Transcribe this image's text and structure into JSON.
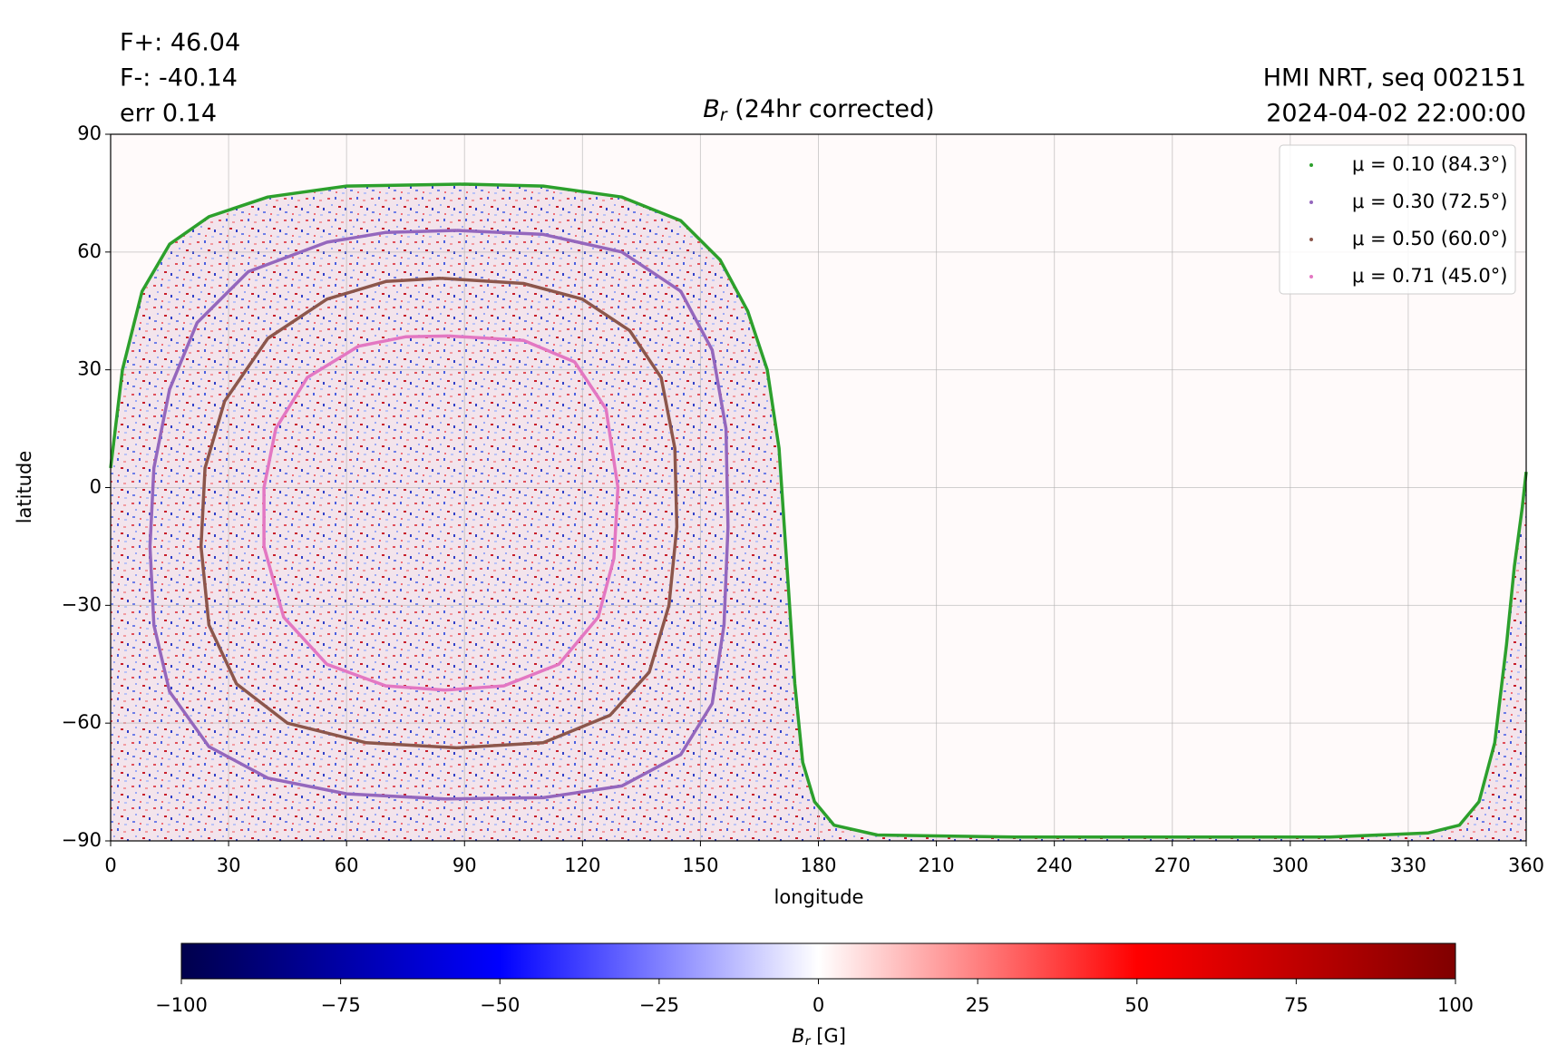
{
  "chart_data": {
    "type": "line",
    "title": "Br (24hr corrected)",
    "annotations_left": [
      "F+: 46.04",
      "F-: -40.14",
      "err 0.14"
    ],
    "annotations_right": [
      "HMI NRT, seq 002151",
      "2024-04-02 22:00:00"
    ],
    "x_label": "longitude",
    "y_label": "latitude",
    "xlim": [
      0,
      360
    ],
    "ylim": [
      -90,
      90
    ],
    "xticks": [
      0,
      30,
      60,
      90,
      120,
      150,
      180,
      210,
      240,
      270,
      300,
      330,
      360
    ],
    "yticks": [
      {
        "value": -90,
        "label": "−90"
      },
      {
        "value": -60,
        "label": "−60"
      },
      {
        "value": -30,
        "label": "−30"
      },
      0,
      30,
      60,
      90
    ],
    "grid": true,
    "legend": "upper right",
    "series": [
      {
        "name": "μ = 0.10 (84.3°)",
        "color": "#2ca02c",
        "x": [
          0,
          3,
          8,
          15,
          25,
          40,
          60,
          90,
          110,
          130,
          145,
          155,
          162,
          167,
          170,
          172,
          174,
          176,
          179,
          184,
          195,
          230,
          270,
          310,
          335,
          343,
          348,
          352,
          355,
          357,
          359,
          360
        ],
        "values": [
          5,
          30,
          50,
          62,
          69,
          74,
          76.8,
          77.3,
          76.8,
          74,
          68,
          58,
          45,
          30,
          10,
          -20,
          -50,
          -70,
          -80,
          -86,
          -88.5,
          -89,
          -89,
          -89,
          -88,
          -86,
          -80,
          -65,
          -40,
          -20,
          -5,
          4
        ]
      },
      {
        "name": "μ = 0.30 (72.5°)",
        "color": "#9467bd",
        "x": [
          88,
          110,
          130,
          145,
          153,
          156.5,
          157,
          156,
          153,
          145,
          130,
          110,
          85,
          60,
          40,
          25,
          15,
          11,
          10,
          11,
          15,
          22,
          35,
          55,
          70,
          88
        ],
        "values": [
          65.5,
          64.5,
          60,
          50,
          35,
          15,
          -10,
          -35,
          -55,
          -68,
          -76,
          -79,
          -79.3,
          -78,
          -74,
          -66,
          -52,
          -35,
          -15,
          5,
          25,
          42,
          55,
          62.5,
          65,
          65.5
        ]
      },
      {
        "name": "μ = 0.50 (60.0°)",
        "color": "#8c564b",
        "x": [
          84,
          105,
          120,
          132,
          140,
          143.5,
          144,
          142,
          137,
          127,
          110,
          88,
          65,
          45,
          32,
          25,
          23,
          24,
          29,
          40,
          55,
          70,
          84
        ],
        "values": [
          53.3,
          52,
          48,
          40,
          28,
          10,
          -10,
          -30,
          -47,
          -58,
          -65,
          -66.3,
          -65,
          -60,
          -50,
          -35,
          -15,
          5,
          22,
          38,
          48,
          52.5,
          53.3
        ]
      },
      {
        "name": "μ = 0.71 (45.0°)",
        "color": "#e377c2",
        "x": [
          86,
          105,
          118,
          126,
          129,
          128,
          124,
          114,
          100,
          85,
          70,
          55,
          44,
          39,
          39,
          42,
          50,
          63,
          75,
          86
        ],
        "values": [
          38.6,
          37.5,
          32,
          20,
          0,
          -18,
          -33,
          -45,
          -50.5,
          -51.6,
          -50.5,
          -45,
          -33,
          -15,
          0,
          15,
          28,
          36,
          38.4,
          38.6
        ]
      }
    ],
    "colorbar": {
      "label": "Br [G]",
      "lim": [
        -100,
        100
      ],
      "ticks": [
        {
          "value": -100,
          "label": "−100"
        },
        {
          "value": -75,
          "label": "−75"
        },
        {
          "value": -50,
          "label": "−50"
        },
        {
          "value": -25,
          "label": "−25"
        },
        0,
        25,
        50,
        75,
        100
      ],
      "colors": [
        "#00004c",
        "#0000ff",
        "#ffffff",
        "#ff0000",
        "#800000"
      ]
    }
  }
}
